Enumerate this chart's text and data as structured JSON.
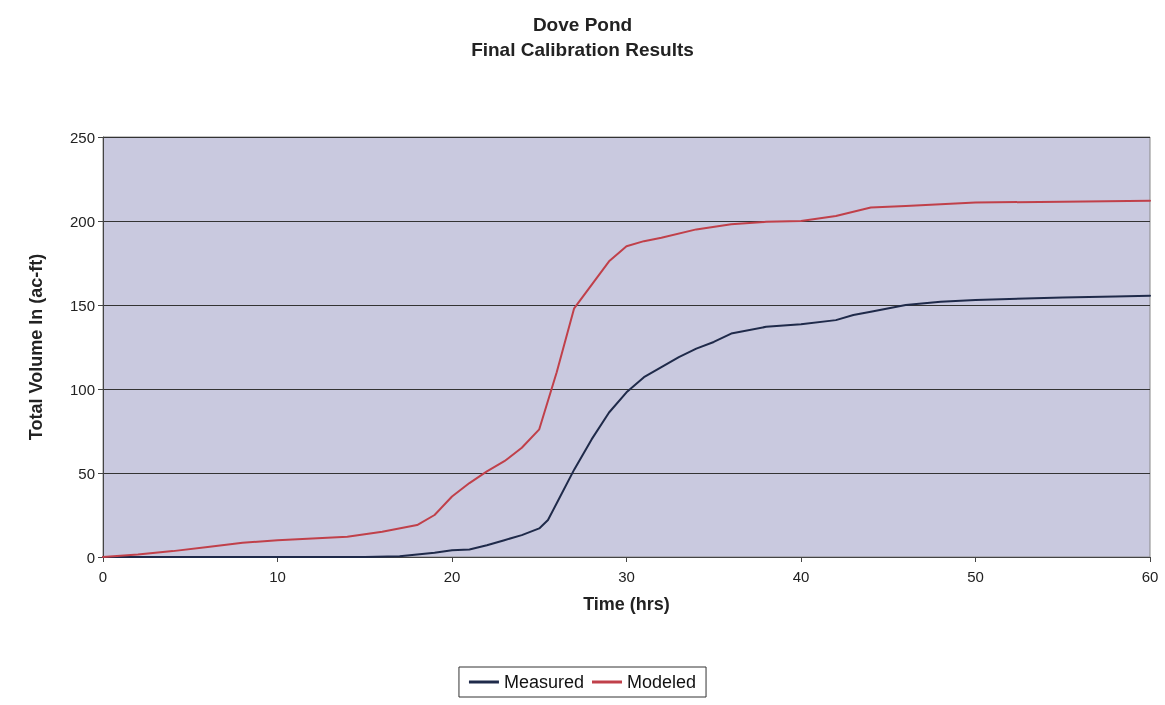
{
  "chart_data": {
    "type": "line",
    "title": "Dove Pond",
    "subtitle": "Final Calibration Results",
    "xlabel": "Time (hrs)",
    "ylabel": "Total Volume In (ac-ft)",
    "xlim": [
      0,
      60
    ],
    "xticks": [
      0,
      10,
      20,
      30,
      40,
      50,
      60
    ],
    "ylim": [
      0,
      250
    ],
    "yticks": [
      0,
      50,
      100,
      150,
      200,
      250
    ],
    "grid": "y",
    "legend": "bottom",
    "marker": "none",
    "line_style": "solid",
    "series": [
      {
        "name": "Measured",
        "color": "#1f2a4a",
        "x": [
          0,
          10,
          15,
          17,
          18,
          19,
          20,
          21,
          22,
          23,
          24,
          25,
          25.5,
          26,
          27,
          28,
          29,
          30,
          31,
          32,
          33,
          34,
          35,
          36,
          38,
          40,
          42,
          43,
          44,
          46,
          48,
          50,
          55,
          58,
          60
        ],
        "values": [
          0,
          0,
          0,
          0.5,
          1.5,
          2.5,
          4,
          4.5,
          7,
          10,
          13,
          17,
          22,
          32,
          52,
          70,
          86,
          98,
          107,
          113,
          119,
          124,
          128,
          133,
          137,
          138.5,
          141,
          144,
          146,
          150,
          152,
          153,
          154.5,
          155,
          155.5
        ]
      },
      {
        "name": "Modeled",
        "color": "#c0404a",
        "x": [
          0,
          2,
          4,
          6,
          8,
          10,
          12,
          14,
          16,
          18,
          19,
          20,
          21,
          22,
          23,
          24,
          25,
          26,
          27,
          28,
          29,
          30,
          31,
          32,
          34,
          36,
          38,
          40,
          42,
          44,
          46,
          48,
          50,
          55,
          60
        ],
        "values": [
          0,
          1.5,
          3.5,
          6,
          8.5,
          10,
          11,
          12,
          15,
          19,
          25,
          36,
          44,
          51,
          57,
          65,
          76,
          110,
          148,
          162,
          176,
          185,
          188,
          190,
          195,
          198,
          199.5,
          200,
          203,
          208,
          209,
          210,
          211,
          211.5,
          212
        ]
      }
    ]
  }
}
